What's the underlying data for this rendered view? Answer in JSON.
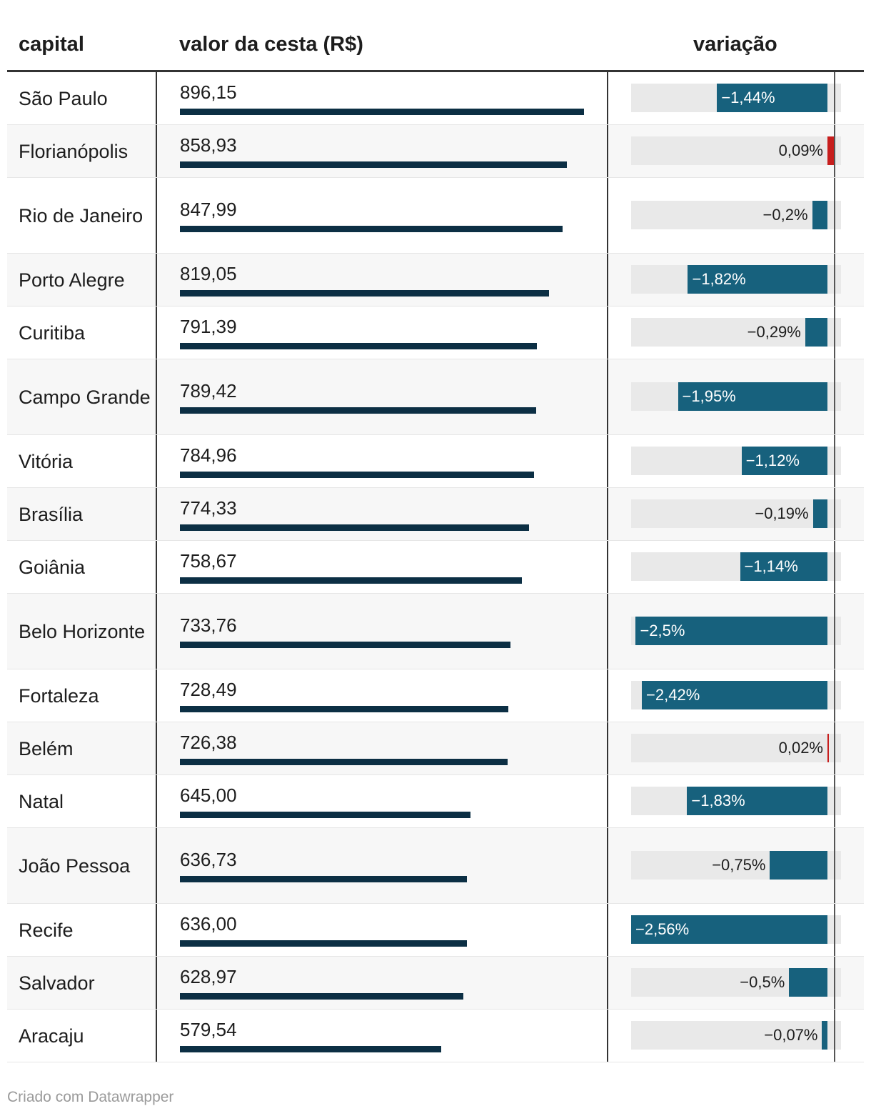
{
  "header": {
    "capital": "capital",
    "valor": "valor da cesta (R$)",
    "variacao": "variação"
  },
  "colors": {
    "value_bar": "#0c2f44",
    "negative": "#17617d",
    "positive": "#c71e1d",
    "track": "#e9e9e9"
  },
  "chart_data": {
    "type": "table",
    "columns": [
      "capital",
      "valor da cesta (R$)",
      "variação"
    ],
    "value_max": 896.15,
    "variation_range": [
      -2.56,
      0.09
    ],
    "rows": [
      {
        "capital": "São Paulo",
        "valor": 896.15,
        "valor_label": "896,15",
        "variacao": -1.44,
        "variacao_label": "−1,44%"
      },
      {
        "capital": "Florianópolis",
        "valor": 858.93,
        "valor_label": "858,93",
        "variacao": 0.09,
        "variacao_label": "0,09%"
      },
      {
        "capital": "Rio de Janeiro",
        "valor": 847.99,
        "valor_label": "847,99",
        "variacao": -0.2,
        "variacao_label": "−0,2%"
      },
      {
        "capital": "Porto Alegre",
        "valor": 819.05,
        "valor_label": "819,05",
        "variacao": -1.82,
        "variacao_label": "−1,82%"
      },
      {
        "capital": "Curitiba",
        "valor": 791.39,
        "valor_label": "791,39",
        "variacao": -0.29,
        "variacao_label": "−0,29%"
      },
      {
        "capital": "Campo Grande",
        "valor": 789.42,
        "valor_label": "789,42",
        "variacao": -1.95,
        "variacao_label": "−1,95%"
      },
      {
        "capital": "Vitória",
        "valor": 784.96,
        "valor_label": "784,96",
        "variacao": -1.12,
        "variacao_label": "−1,12%"
      },
      {
        "capital": "Brasília",
        "valor": 774.33,
        "valor_label": "774,33",
        "variacao": -0.19,
        "variacao_label": "−0,19%"
      },
      {
        "capital": "Goiânia",
        "valor": 758.67,
        "valor_label": "758,67",
        "variacao": -1.14,
        "variacao_label": "−1,14%"
      },
      {
        "capital": "Belo Horizonte",
        "valor": 733.76,
        "valor_label": "733,76",
        "variacao": -2.5,
        "variacao_label": "−2,5%"
      },
      {
        "capital": "Fortaleza",
        "valor": 728.49,
        "valor_label": "728,49",
        "variacao": -2.42,
        "variacao_label": "−2,42%"
      },
      {
        "capital": "Belém",
        "valor": 726.38,
        "valor_label": "726,38",
        "variacao": 0.02,
        "variacao_label": "0,02%"
      },
      {
        "capital": "Natal",
        "valor": 645.0,
        "valor_label": "645,00",
        "variacao": -1.83,
        "variacao_label": "−1,83%"
      },
      {
        "capital": "João Pessoa",
        "valor": 636.73,
        "valor_label": "636,73",
        "variacao": -0.75,
        "variacao_label": "−0,75%"
      },
      {
        "capital": "Recife",
        "valor": 636.0,
        "valor_label": "636,00",
        "variacao": -2.56,
        "variacao_label": "−2,56%"
      },
      {
        "capital": "Salvador",
        "valor": 628.97,
        "valor_label": "628,97",
        "variacao": -0.5,
        "variacao_label": "−0,5%"
      },
      {
        "capital": "Aracaju",
        "valor": 579.54,
        "valor_label": "579,54",
        "variacao": -0.07,
        "variacao_label": "−0,07%"
      }
    ]
  },
  "footer": {
    "credit": "Criado com Datawrapper"
  }
}
